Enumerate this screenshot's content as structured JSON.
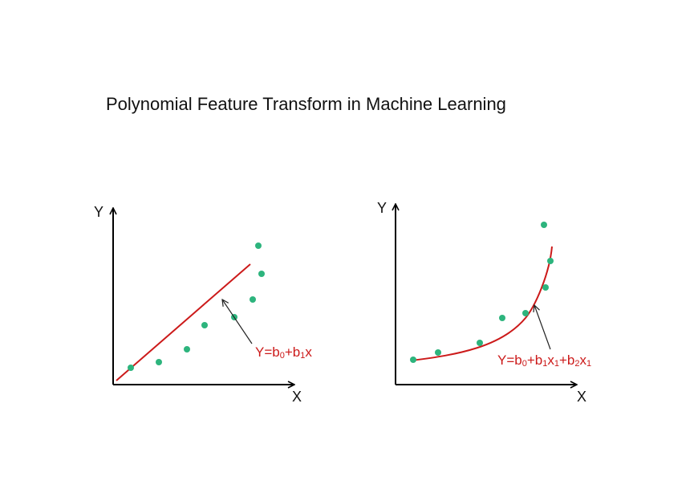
{
  "title": "Polynomial Feature Transform in Machine Learning",
  "colors": {
    "point": "#2db47d",
    "fit": "#cc1a1a",
    "axis": "#000000",
    "text": "#111111"
  },
  "left_panel": {
    "y_axis_label": "Y",
    "x_axis_label": "X",
    "equation": {
      "Y": "Y=b",
      "s0": "0",
      "plus1": "+b",
      "s1": "1",
      "x": "x"
    }
  },
  "right_panel": {
    "y_axis_label": "Y",
    "x_axis_label": "X",
    "equation": {
      "Y": "Y=b",
      "s0": "0",
      "plus1": "+b",
      "s1": "1",
      "x1": "x",
      "s2": "1",
      "plus2": "+b",
      "s3": "2",
      "x2": "x",
      "s4": "1"
    }
  }
}
